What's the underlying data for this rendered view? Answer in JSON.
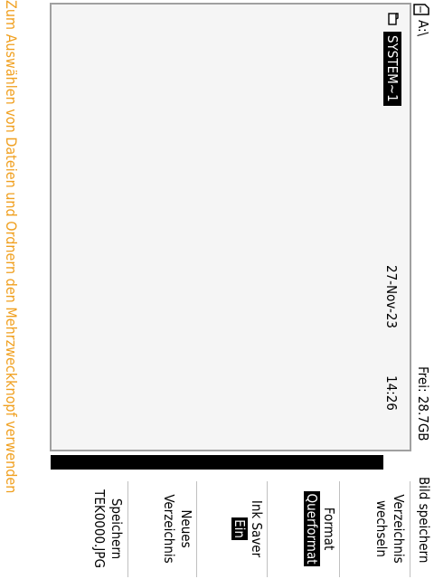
{
  "header": {
    "drive_icon": "drive-icon",
    "drive": "A:\\",
    "free_space": "Frei: 28.7GB"
  },
  "files": [
    {
      "icon": "folder-icon",
      "name": "SYSTEM~1",
      "date": "27-Nov-23",
      "time": "14:26",
      "selected": true
    }
  ],
  "menu": {
    "title": "Bild speichern",
    "dir_change_l1": "Verzeichnis",
    "dir_change_l2": "wechseln",
    "format_label": "Format",
    "format_value": "Querformat",
    "ink_saver_label": "Ink Saver",
    "ink_saver_value": "Ein",
    "new_dir_l1": "Neues",
    "new_dir_l2": "Verzeichnis",
    "save_l1": "Speichern",
    "save_l2": "TEK0000.JPG"
  },
  "status": {
    "hint": "Zum Auswählen von Dateien und Ordnern den Mehrzweckknopf verwenden"
  },
  "colors": {
    "hint": "#f0a020",
    "selection_bg": "#000000"
  }
}
